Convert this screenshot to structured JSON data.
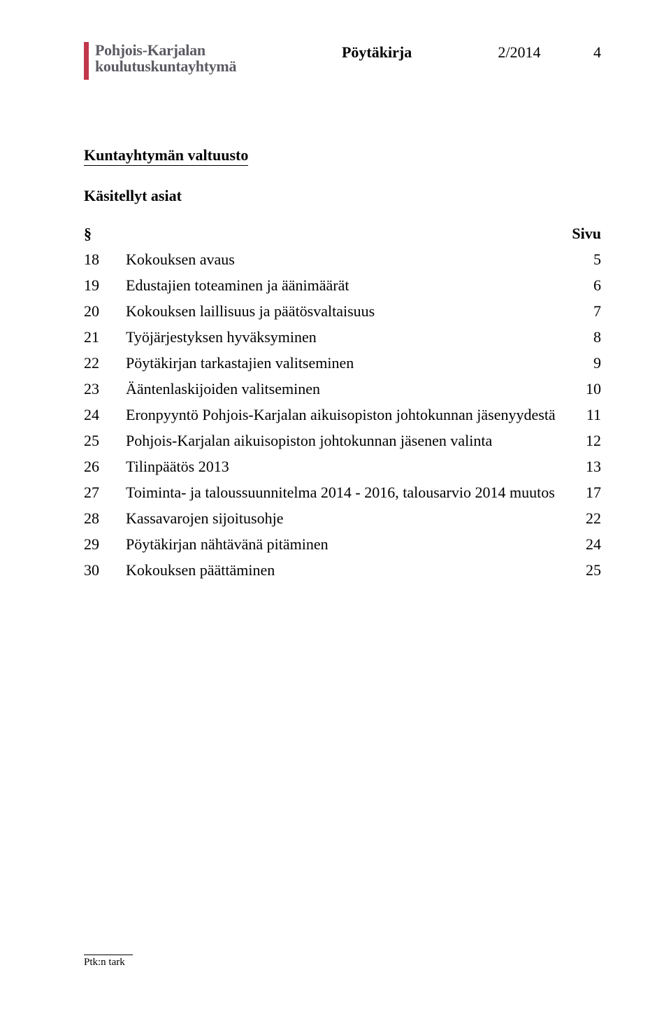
{
  "header": {
    "logo_line1": "Pohjois-Karjalan",
    "logo_line2": "koulutuskuntayhtymä",
    "doc_type": "Pöytäkirja",
    "doc_number": "2/2014",
    "page_number": "4"
  },
  "section_title": "Kuntayhtymän valtuusto",
  "subheading": "Käsitellyt asiat",
  "toc_header": {
    "symbol": "§",
    "page_label": "Sivu"
  },
  "toc": [
    {
      "num": "18",
      "title": "Kokouksen avaus",
      "page": "5"
    },
    {
      "num": "19",
      "title": "Edustajien toteaminen ja äänimäärät",
      "page": "6"
    },
    {
      "num": "20",
      "title": "Kokouksen laillisuus ja päätösvaltaisuus",
      "page": "7"
    },
    {
      "num": "21",
      "title": "Työjärjestyksen hyväksyminen",
      "page": "8"
    },
    {
      "num": "22",
      "title": "Pöytäkirjan tarkastajien valitseminen",
      "page": "9"
    },
    {
      "num": "23",
      "title": "Ääntenlaskijoiden valitseminen",
      "page": "10"
    },
    {
      "num": "24",
      "title": "Eronpyyntö Pohjois-Karjalan aikuisopiston johtokunnan jäsenyydestä",
      "page": "11"
    },
    {
      "num": "25",
      "title": "Pohjois-Karjalan aikuisopiston johtokunnan jäsenen valinta",
      "page": "12"
    },
    {
      "num": "26",
      "title": "Tilinpäätös 2013",
      "page": "13"
    },
    {
      "num": "27",
      "title": "Toiminta- ja taloussuunnitelma 2014 - 2016, talousarvio 2014 muutos",
      "page": "17"
    },
    {
      "num": "28",
      "title": "Kassavarojen sijoitusohje",
      "page": "22"
    },
    {
      "num": "29",
      "title": "Pöytäkirjan nähtävänä pitäminen",
      "page": "24"
    },
    {
      "num": "30",
      "title": "Kokouksen päättäminen",
      "page": "25"
    }
  ],
  "footer": "Ptk:n tark"
}
